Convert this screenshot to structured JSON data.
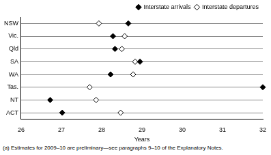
{
  "chart_data": {
    "type": "dot",
    "categories": [
      "NSW",
      "Vic.",
      "Qld",
      "SA",
      "WA",
      "Tas.",
      "NT",
      "ACT"
    ],
    "series": [
      {
        "name": "Interstate arrivals",
        "color": "#000000",
        "marker": "diamond",
        "values": [
          28.66,
          28.28,
          28.33,
          28.95,
          28.22,
          32.0,
          26.72,
          27.02
        ]
      },
      {
        "name": "Interstate departures",
        "color": "#000000",
        "marker": "open_diamond",
        "values": [
          27.93,
          28.57,
          28.5,
          28.83,
          28.78,
          27.7,
          27.86,
          28.47
        ]
      }
    ],
    "x_label": "Years",
    "xlim": [
      26,
      32
    ],
    "xticks": [
      26,
      27,
      28,
      29,
      30,
      31,
      32
    ],
    "grid": true,
    "legend": "upper right",
    "footnote": "(a) Estimates for 2009–10 are preliminary—see paragraphs 9–10 of the Explanatory Notes."
  }
}
